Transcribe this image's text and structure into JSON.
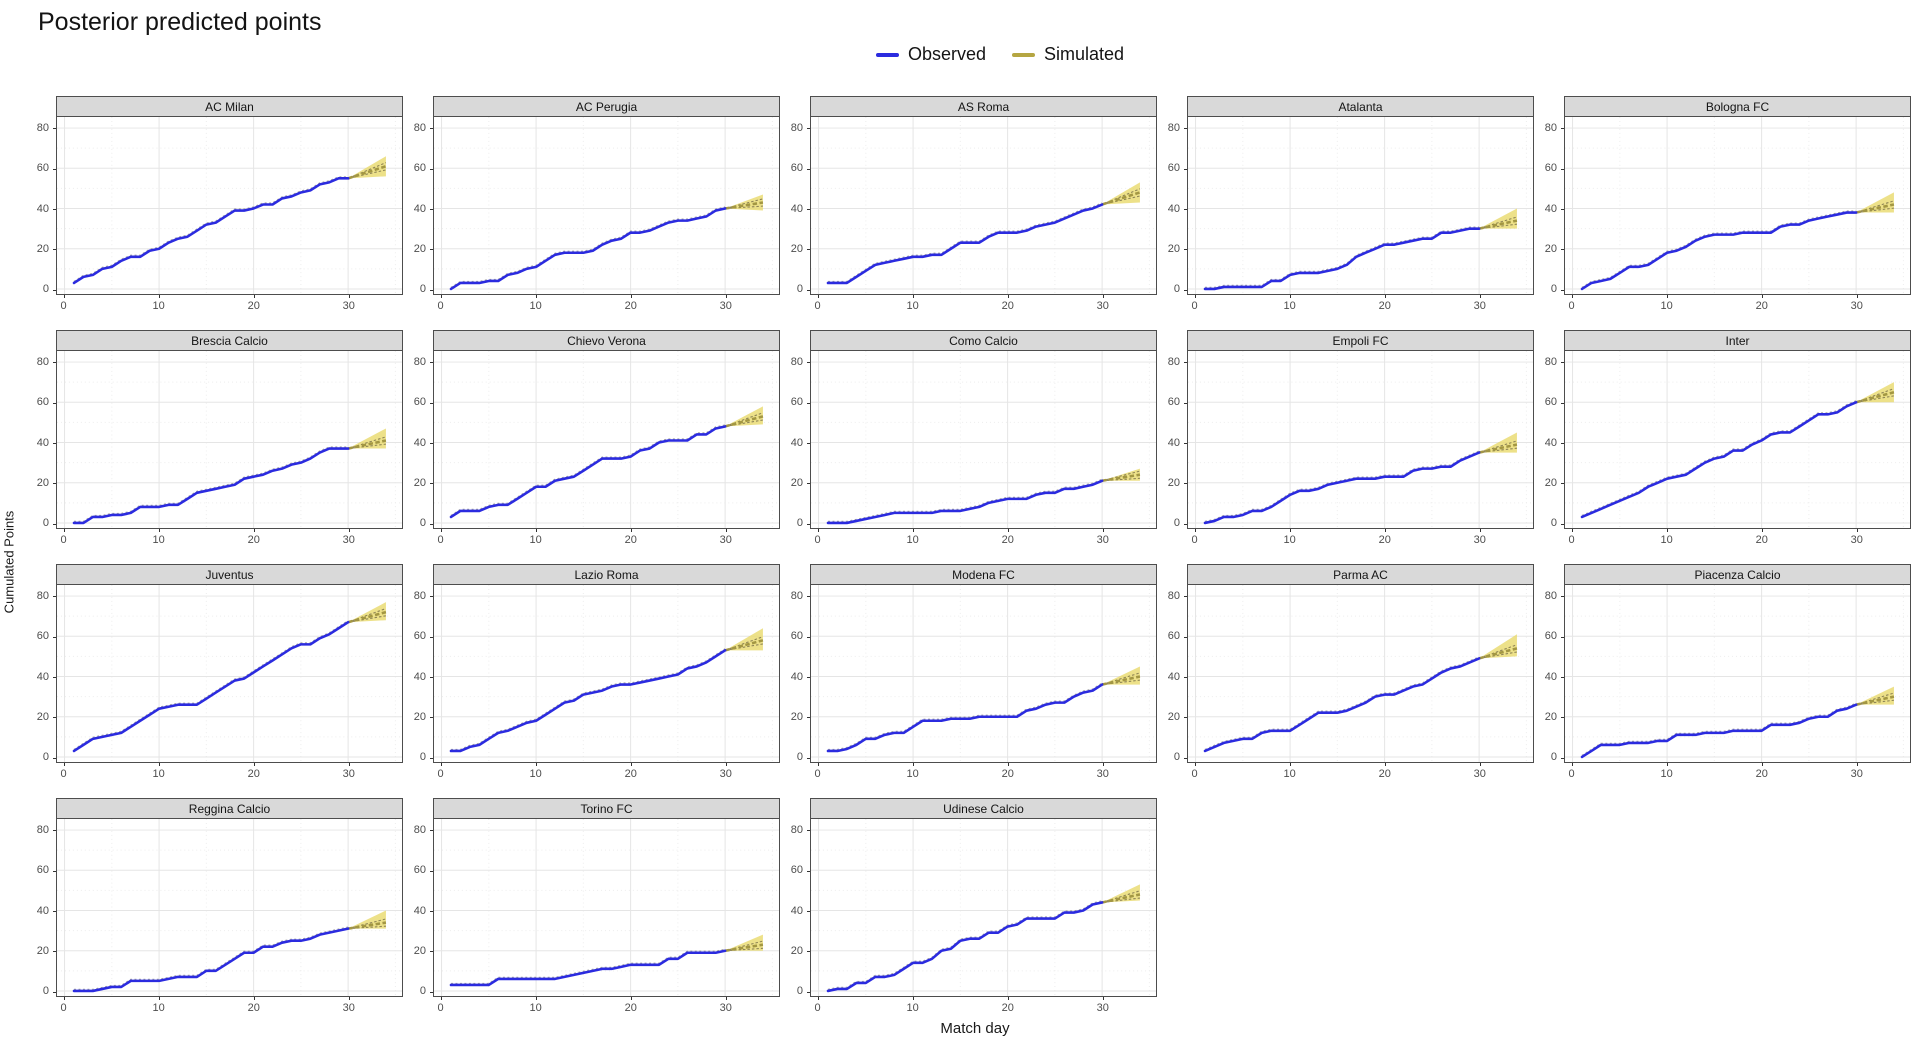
{
  "chart_data": {
    "type": "line",
    "title": "Posterior predicted points",
    "xlabel": "Match day",
    "ylabel": "Cumulated Points",
    "x_ticks": [
      0,
      10,
      20,
      30
    ],
    "x_minor_ticks": [
      5,
      15,
      25,
      35
    ],
    "y_ticks": [
      0,
      20,
      40,
      60,
      80
    ],
    "y_minor_ticks": [
      10,
      30,
      50,
      70
    ],
    "xlim": [
      -0.8,
      35.7
    ],
    "ylim": [
      -2.5,
      85.5
    ],
    "grid": true,
    "legend_position": "top-center",
    "legend": [
      {
        "label": "Observed",
        "color": "#2b2bdf"
      },
      {
        "label": "Simulated",
        "color": "#b5a642"
      }
    ],
    "colors": {
      "observed_line": "#2b2bdf",
      "observed_echo": "#9a9a9a",
      "fan_fill": "#e8d96b",
      "fan_median": "#a39743",
      "fan_spaghetti": "#8e8455",
      "strip_bg": "#d9d9d9",
      "panel_border": "#4d4d4d",
      "grid_major": "#e5e5e5",
      "grid_minor": "#ededed",
      "axis_text": "#4d4d4d"
    },
    "observed_days_range": [
      1,
      30
    ],
    "simulated_days_range": [
      30,
      34
    ],
    "facets": [
      {
        "team": "AC Milan",
        "observed": [
          3,
          6,
          7,
          10,
          11,
          14,
          16,
          16,
          19,
          20,
          23,
          25,
          26,
          29,
          32,
          33,
          36,
          39,
          39,
          40,
          42,
          42,
          45,
          46,
          48,
          49,
          52,
          53,
          55,
          55
        ],
        "simulated": {
          "lower_end": 56,
          "upper_end": 66,
          "median_end": 61
        }
      },
      {
        "team": "AC Perugia",
        "observed": [
          0,
          3,
          3,
          3,
          4,
          4,
          7,
          8,
          10,
          11,
          14,
          17,
          18,
          18,
          18,
          19,
          22,
          24,
          25,
          28,
          28,
          29,
          31,
          33,
          34,
          34,
          35,
          36,
          39,
          40
        ],
        "simulated": {
          "lower_end": 39,
          "upper_end": 47,
          "median_end": 43
        }
      },
      {
        "team": "AS Roma",
        "observed": [
          3,
          3,
          3,
          6,
          9,
          12,
          13,
          14,
          15,
          16,
          16,
          17,
          17,
          20,
          23,
          23,
          23,
          26,
          28,
          28,
          28,
          29,
          31,
          32,
          33,
          35,
          37,
          39,
          40,
          42
        ],
        "simulated": {
          "lower_end": 43,
          "upper_end": 53,
          "median_end": 48
        }
      },
      {
        "team": "Atalanta",
        "observed": [
          0,
          0,
          1,
          1,
          1,
          1,
          1,
          4,
          4,
          7,
          8,
          8,
          8,
          9,
          10,
          12,
          16,
          18,
          20,
          22,
          22,
          23,
          24,
          25,
          25,
          28,
          28,
          29,
          30,
          30
        ],
        "simulated": {
          "lower_end": 30,
          "upper_end": 40,
          "median_end": 34
        }
      },
      {
        "team": "Bologna FC",
        "observed": [
          0,
          3,
          4,
          5,
          8,
          11,
          11,
          12,
          15,
          18,
          19,
          21,
          24,
          26,
          27,
          27,
          27,
          28,
          28,
          28,
          28,
          31,
          32,
          32,
          34,
          35,
          36,
          37,
          38,
          38
        ],
        "simulated": {
          "lower_end": 38,
          "upper_end": 48,
          "median_end": 42
        }
      },
      {
        "team": "Brescia Calcio",
        "observed": [
          0,
          0,
          3,
          3,
          4,
          4,
          5,
          8,
          8,
          8,
          9,
          9,
          12,
          15,
          16,
          17,
          18,
          19,
          22,
          23,
          24,
          26,
          27,
          29,
          30,
          32,
          35,
          37,
          37,
          37
        ],
        "simulated": {
          "lower_end": 37,
          "upper_end": 47,
          "median_end": 41
        }
      },
      {
        "team": "Chievo Verona",
        "observed": [
          3,
          6,
          6,
          6,
          8,
          9,
          9,
          12,
          15,
          18,
          18,
          21,
          22,
          23,
          26,
          29,
          32,
          32,
          32,
          33,
          36,
          37,
          40,
          41,
          41,
          41,
          44,
          44,
          47,
          48
        ],
        "simulated": {
          "lower_end": 49,
          "upper_end": 58,
          "median_end": 53
        }
      },
      {
        "team": "Como Calcio",
        "observed": [
          0,
          0,
          0,
          1,
          2,
          3,
          4,
          5,
          5,
          5,
          5,
          5,
          6,
          6,
          6,
          7,
          8,
          10,
          11,
          12,
          12,
          12,
          14,
          15,
          15,
          17,
          17,
          18,
          19,
          21
        ],
        "simulated": {
          "lower_end": 21,
          "upper_end": 27,
          "median_end": 24
        }
      },
      {
        "team": "Empoli FC",
        "observed": [
          0,
          1,
          3,
          3,
          4,
          6,
          6,
          8,
          11,
          14,
          16,
          16,
          17,
          19,
          20,
          21,
          22,
          22,
          22,
          23,
          23,
          23,
          26,
          27,
          27,
          28,
          28,
          31,
          33,
          35
        ],
        "simulated": {
          "lower_end": 35,
          "upper_end": 45,
          "median_end": 39
        }
      },
      {
        "team": "Inter",
        "observed": [
          3,
          5,
          7,
          9,
          11,
          13,
          15,
          18,
          20,
          22,
          23,
          24,
          27,
          30,
          32,
          33,
          36,
          36,
          39,
          41,
          44,
          45,
          45,
          48,
          51,
          54,
          54,
          55,
          58,
          60
        ],
        "simulated": {
          "lower_end": 60,
          "upper_end": 70,
          "median_end": 65
        }
      },
      {
        "team": "Juventus",
        "observed": [
          3,
          6,
          9,
          10,
          11,
          12,
          15,
          18,
          21,
          24,
          25,
          26,
          26,
          26,
          29,
          32,
          35,
          38,
          39,
          42,
          45,
          48,
          51,
          54,
          56,
          56,
          59,
          61,
          64,
          67
        ],
        "simulated": {
          "lower_end": 68,
          "upper_end": 77,
          "median_end": 72
        }
      },
      {
        "team": "Lazio Roma",
        "observed": [
          3,
          3,
          5,
          6,
          9,
          12,
          13,
          15,
          17,
          18,
          21,
          24,
          27,
          28,
          31,
          32,
          33,
          35,
          36,
          36,
          37,
          38,
          39,
          40,
          41,
          44,
          45,
          47,
          50,
          53
        ],
        "simulated": {
          "lower_end": 53,
          "upper_end": 64,
          "median_end": 58
        }
      },
      {
        "team": "Modena FC",
        "observed": [
          3,
          3,
          4,
          6,
          9,
          9,
          11,
          12,
          12,
          15,
          18,
          18,
          18,
          19,
          19,
          19,
          20,
          20,
          20,
          20,
          20,
          23,
          24,
          26,
          27,
          27,
          30,
          32,
          33,
          36
        ],
        "simulated": {
          "lower_end": 36,
          "upper_end": 45,
          "median_end": 40
        }
      },
      {
        "team": "Parma AC",
        "observed": [
          3,
          5,
          7,
          8,
          9,
          9,
          12,
          13,
          13,
          13,
          16,
          19,
          22,
          22,
          22,
          23,
          25,
          27,
          30,
          31,
          31,
          33,
          35,
          36,
          39,
          42,
          44,
          45,
          47,
          49
        ],
        "simulated": {
          "lower_end": 50,
          "upper_end": 61,
          "median_end": 54
        }
      },
      {
        "team": "Piacenza Calcio",
        "observed": [
          0,
          3,
          6,
          6,
          6,
          7,
          7,
          7,
          8,
          8,
          11,
          11,
          11,
          12,
          12,
          12,
          13,
          13,
          13,
          13,
          16,
          16,
          16,
          17,
          19,
          20,
          20,
          23,
          24,
          26
        ],
        "simulated": {
          "lower_end": 26,
          "upper_end": 35,
          "median_end": 30
        }
      },
      {
        "team": "Reggina Calcio",
        "observed": [
          0,
          0,
          0,
          1,
          2,
          2,
          5,
          5,
          5,
          5,
          6,
          7,
          7,
          7,
          10,
          10,
          13,
          16,
          19,
          19,
          22,
          22,
          24,
          25,
          25,
          26,
          28,
          29,
          30,
          31
        ],
        "simulated": {
          "lower_end": 31,
          "upper_end": 40,
          "median_end": 34
        }
      },
      {
        "team": "Torino FC",
        "observed": [
          3,
          3,
          3,
          3,
          3,
          6,
          6,
          6,
          6,
          6,
          6,
          6,
          7,
          8,
          9,
          10,
          11,
          11,
          12,
          13,
          13,
          13,
          13,
          16,
          16,
          19,
          19,
          19,
          19,
          20
        ],
        "simulated": {
          "lower_end": 20,
          "upper_end": 28,
          "median_end": 23
        }
      },
      {
        "team": "Udinese Calcio",
        "observed": [
          0,
          1,
          1,
          4,
          4,
          7,
          7,
          8,
          11,
          14,
          14,
          16,
          20,
          21,
          25,
          26,
          26,
          29,
          29,
          32,
          33,
          36,
          36,
          36,
          36,
          39,
          39,
          40,
          43,
          44
        ],
        "simulated": {
          "lower_end": 45,
          "upper_end": 53,
          "median_end": 48
        }
      }
    ]
  }
}
